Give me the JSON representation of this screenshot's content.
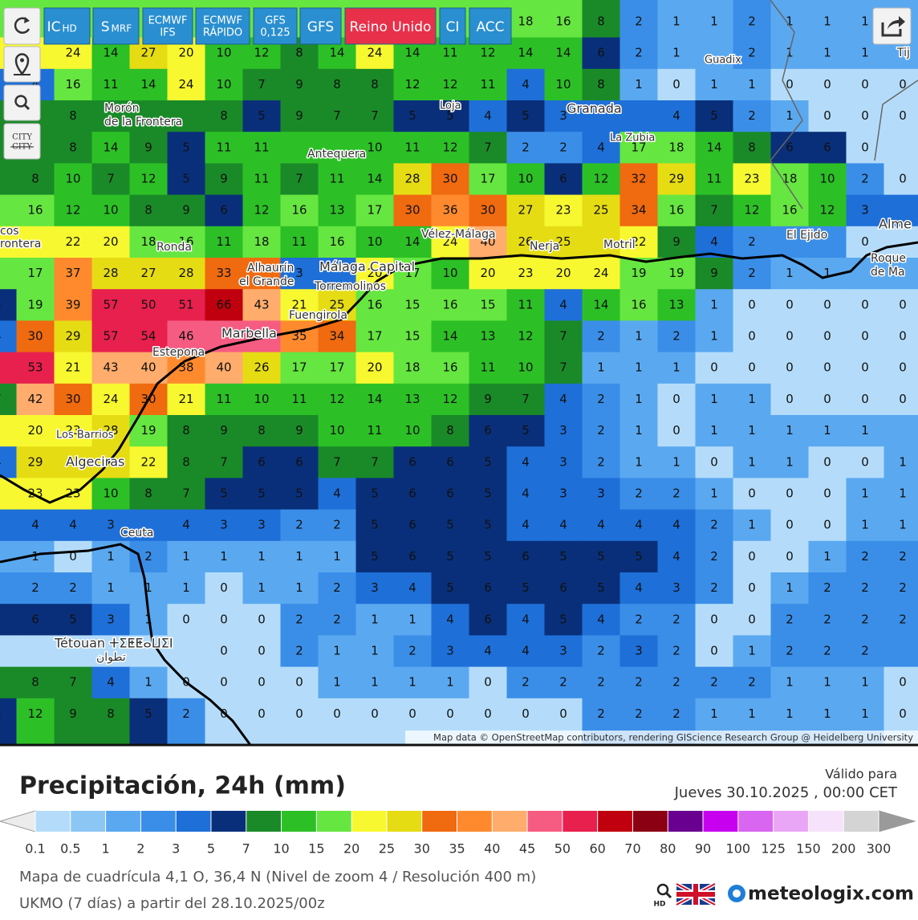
{
  "toolbar": {
    "buttons": [
      {
        "label": "IC",
        "sub": "HD"
      },
      {
        "label": "S",
        "sub": "MRF"
      },
      {
        "label": "ECMWF",
        "sub": "IFS"
      },
      {
        "label": "ECMWF",
        "sub": "RÁPIDO"
      },
      {
        "label": "GFS",
        "sub": "0,125"
      },
      {
        "label": "GFS"
      },
      {
        "label": "Reino Unido"
      },
      {
        "label": "CI"
      },
      {
        "label": "ACC"
      }
    ],
    "city_toggle": [
      "CITY",
      "CITY"
    ]
  },
  "map": {
    "places": [
      "Guadix",
      "Morón",
      "de la Frontera",
      "Loja",
      "Granada",
      "La Zubia",
      "Antequera",
      "Ronda",
      "Vélez-Málaga",
      "Nerja",
      "Motril",
      "El Ejido",
      "Alhaurín",
      "el Grande",
      "Málaga Capital",
      "Torremolinos",
      "Fuengirola",
      "Marbella",
      "Estepona",
      "Los Barrios",
      "Algeciras",
      "Ceuta",
      "Tétouan ⵜⵉⵟⵟⴰⵡⵉⵏ",
      "تطوان",
      "Alme",
      "Roque",
      "de Ma",
      "Tij",
      "cos",
      "rontera"
    ],
    "attribution": "Map data © OpenStreetMap contributors, rendering GIScience Research Group @ Heidelberg University",
    "grid": [
      [
        null,
        null,
        null,
        null,
        null,
        null,
        null,
        null,
        null,
        null,
        null,
        null,
        null,
        null,
        18,
        16,
        8,
        2,
        1,
        1,
        2,
        1,
        1,
        1,
        null
      ],
      [
        null,
        null,
        24,
        14,
        27,
        20,
        10,
        12,
        8,
        14,
        24,
        14,
        11,
        12,
        14,
        14,
        6,
        2,
        1,
        null,
        2,
        1,
        1,
        1,
        null
      ],
      [
        null,
        4,
        16,
        11,
        14,
        24,
        10,
        7,
        9,
        8,
        8,
        12,
        12,
        11,
        4,
        10,
        8,
        1,
        0,
        1,
        1,
        0,
        0,
        0,
        0
      ],
      [
        null,
        null,
        8,
        null,
        null,
        null,
        8,
        5,
        9,
        7,
        7,
        5,
        5,
        4,
        5,
        3,
        null,
        null,
        4,
        5,
        2,
        1,
        0,
        0,
        0
      ],
      [
        null,
        null,
        8,
        14,
        9,
        5,
        11,
        11,
        null,
        null,
        10,
        11,
        12,
        7,
        2,
        2,
        4,
        17,
        18,
        14,
        8,
        6,
        6,
        0,
        null
      ],
      [
        null,
        8,
        10,
        7,
        12,
        5,
        9,
        11,
        7,
        11,
        14,
        28,
        30,
        17,
        10,
        6,
        12,
        32,
        29,
        11,
        23,
        18,
        10,
        2,
        0
      ],
      [
        null,
        16,
        12,
        10,
        8,
        9,
        6,
        12,
        16,
        13,
        17,
        30,
        36,
        30,
        27,
        23,
        25,
        34,
        16,
        7,
        12,
        16,
        12,
        3,
        null
      ],
      [
        null,
        null,
        22,
        20,
        18,
        16,
        11,
        18,
        11,
        16,
        10,
        14,
        24,
        40,
        26,
        25,
        null,
        22,
        9,
        4,
        2,
        null,
        null,
        0,
        null
      ],
      [
        null,
        17,
        37,
        28,
        27,
        28,
        33,
        null,
        3,
        null,
        20,
        17,
        10,
        20,
        23,
        20,
        24,
        19,
        19,
        9,
        2,
        1,
        1,
        null,
        null
      ],
      [
        5,
        19,
        39,
        57,
        50,
        51,
        66,
        43,
        21,
        25,
        16,
        15,
        16,
        15,
        11,
        4,
        14,
        16,
        13,
        1,
        0,
        0,
        0,
        0,
        0
      ],
      [
        4,
        30,
        29,
        57,
        54,
        46,
        null,
        null,
        35,
        34,
        17,
        15,
        14,
        13,
        12,
        7,
        2,
        1,
        2,
        1,
        0,
        0,
        0,
        0,
        0
      ],
      [
        null,
        53,
        21,
        43,
        40,
        38,
        40,
        26,
        17,
        17,
        20,
        18,
        16,
        11,
        10,
        7,
        1,
        1,
        1,
        0,
        0,
        0,
        0,
        0,
        0
      ],
      [
        7,
        42,
        30,
        24,
        30,
        21,
        11,
        10,
        11,
        12,
        14,
        13,
        12,
        9,
        7,
        4,
        2,
        1,
        0,
        1,
        1,
        0,
        0,
        0,
        0
      ],
      [
        null,
        20,
        23,
        28,
        19,
        8,
        9,
        8,
        9,
        10,
        11,
        10,
        8,
        6,
        5,
        3,
        2,
        1,
        0,
        1,
        1,
        1,
        1,
        1,
        null
      ],
      [
        4,
        29,
        null,
        null,
        22,
        8,
        7,
        6,
        6,
        7,
        7,
        6,
        6,
        5,
        4,
        3,
        2,
        1,
        1,
        0,
        1,
        1,
        0,
        0,
        1
      ],
      [
        null,
        23,
        23,
        10,
        8,
        7,
        5,
        5,
        5,
        4,
        5,
        6,
        6,
        5,
        4,
        3,
        3,
        2,
        2,
        1,
        0,
        0,
        0,
        1,
        1
      ],
      [
        null,
        4,
        4,
        3,
        null,
        4,
        3,
        3,
        2,
        2,
        5,
        6,
        5,
        5,
        4,
        4,
        4,
        4,
        4,
        2,
        1,
        0,
        0,
        1,
        1
      ],
      [
        null,
        1,
        0,
        1,
        2,
        1,
        1,
        1,
        1,
        1,
        5,
        6,
        5,
        5,
        6,
        5,
        5,
        5,
        4,
        2,
        0,
        0,
        1,
        2,
        2
      ],
      [
        null,
        2,
        2,
        1,
        1,
        1,
        0,
        1,
        1,
        2,
        3,
        4,
        5,
        6,
        5,
        6,
        5,
        4,
        3,
        2,
        0,
        1,
        2,
        2,
        2
      ],
      [
        null,
        6,
        5,
        3,
        1,
        0,
        0,
        0,
        2,
        2,
        1,
        1,
        4,
        6,
        4,
        5,
        4,
        2,
        2,
        0,
        0,
        2,
        2,
        2,
        2
      ],
      [
        null,
        null,
        null,
        null,
        null,
        null,
        0,
        0,
        2,
        1,
        1,
        2,
        3,
        4,
        4,
        3,
        2,
        3,
        2,
        0,
        1,
        2,
        2,
        2,
        null
      ],
      [
        null,
        8,
        7,
        4,
        1,
        0,
        0,
        0,
        0,
        1,
        1,
        1,
        1,
        0,
        2,
        2,
        2,
        2,
        2,
        2,
        2,
        1,
        1,
        1,
        0
      ],
      [
        5,
        12,
        9,
        8,
        5,
        2,
        0,
        0,
        0,
        0,
        0,
        0,
        0,
        0,
        0,
        0,
        2,
        2,
        2,
        1,
        1,
        1,
        1,
        1,
        0
      ]
    ]
  },
  "legend": {
    "title": "Precipitación, 24h (mm)",
    "valid_label": "Válido para",
    "valid_time": "Jueves 30.10.2025 , 00:00 CET",
    "ticks": [
      0.1,
      0.5,
      1,
      2,
      3,
      5,
      7,
      10,
      15,
      20,
      25,
      30,
      35,
      40,
      45,
      50,
      60,
      70,
      80,
      90,
      100,
      125,
      150,
      200,
      300
    ],
    "colors": [
      "#b4dcfa",
      "#8cc6f5",
      "#5aa8f0",
      "#3a8ee8",
      "#1e6fd8",
      "#0a2f7a",
      "#1a8a28",
      "#2cc026",
      "#66e640",
      "#f8f830",
      "#e6dc14",
      "#f06a10",
      "#ff8a2e",
      "#ffac6c",
      "#f65c82",
      "#e8204e",
      "#c0000e",
      "#8c0014",
      "#6a0090",
      "#c800f0",
      "#d866f0",
      "#eaa6f6",
      "#f6e2fa",
      "#d4d4d4"
    ],
    "under_color": "#ececec",
    "over_color": "#9a9a9a"
  },
  "footer": {
    "grid_info": "Mapa de cuadrícula 4,1 O, 36,4 N (Nivel de zoom 4 / Resolución 400 m)",
    "model_info": "UKMO (7 días) a partir del 28.10.2025/00z",
    "hd": "HD",
    "brand": "meteologix.com"
  }
}
